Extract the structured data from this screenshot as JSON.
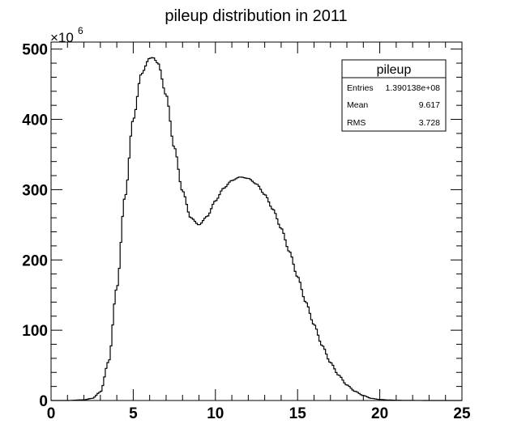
{
  "chart_data": {
    "type": "line",
    "title": "pileup distribution in 2011",
    "xlabel": "",
    "ylabel": "",
    "y_multiplier_label": "×10",
    "y_multiplier_exponent": "6",
    "xlim": [
      0,
      25
    ],
    "ylim": [
      0,
      510
    ],
    "x_ticks": [
      "0",
      "5",
      "10",
      "15",
      "20",
      "25"
    ],
    "y_ticks": [
      "0",
      "100",
      "200",
      "300",
      "400",
      "500"
    ],
    "grid": false,
    "series": [
      {
        "values_unit": "×10^6",
        "x": [
          0,
          1,
          2,
          2.5,
          3,
          3.5,
          4,
          4.5,
          5,
          5.5,
          6,
          6.2,
          6.5,
          7,
          7.5,
          8,
          8.5,
          9,
          9.5,
          10,
          10.5,
          11,
          11.5,
          12,
          12.5,
          13,
          13.5,
          14,
          14.5,
          15,
          15.5,
          16,
          16.5,
          17,
          17.5,
          18,
          18.5,
          19,
          19.5,
          20,
          20.5,
          21,
          22,
          23,
          24,
          25
        ],
        "y": [
          0,
          0,
          1,
          3,
          12,
          55,
          160,
          290,
          400,
          465,
          487,
          488,
          480,
          435,
          360,
          298,
          260,
          250,
          262,
          284,
          302,
          313,
          318,
          316,
          308,
          293,
          272,
          245,
          212,
          176,
          140,
          108,
          78,
          54,
          36,
          22,
          13,
          7,
          3,
          1.5,
          0.8,
          0.3,
          0.1,
          0,
          0,
          0
        ]
      }
    ],
    "stats_box": {
      "title": "pileup",
      "rows": [
        {
          "label": "Entries",
          "value": "1.390138e+08"
        },
        {
          "label": "Mean",
          "value": "9.617"
        },
        {
          "label": "RMS",
          "value": "3.728"
        }
      ]
    }
  }
}
